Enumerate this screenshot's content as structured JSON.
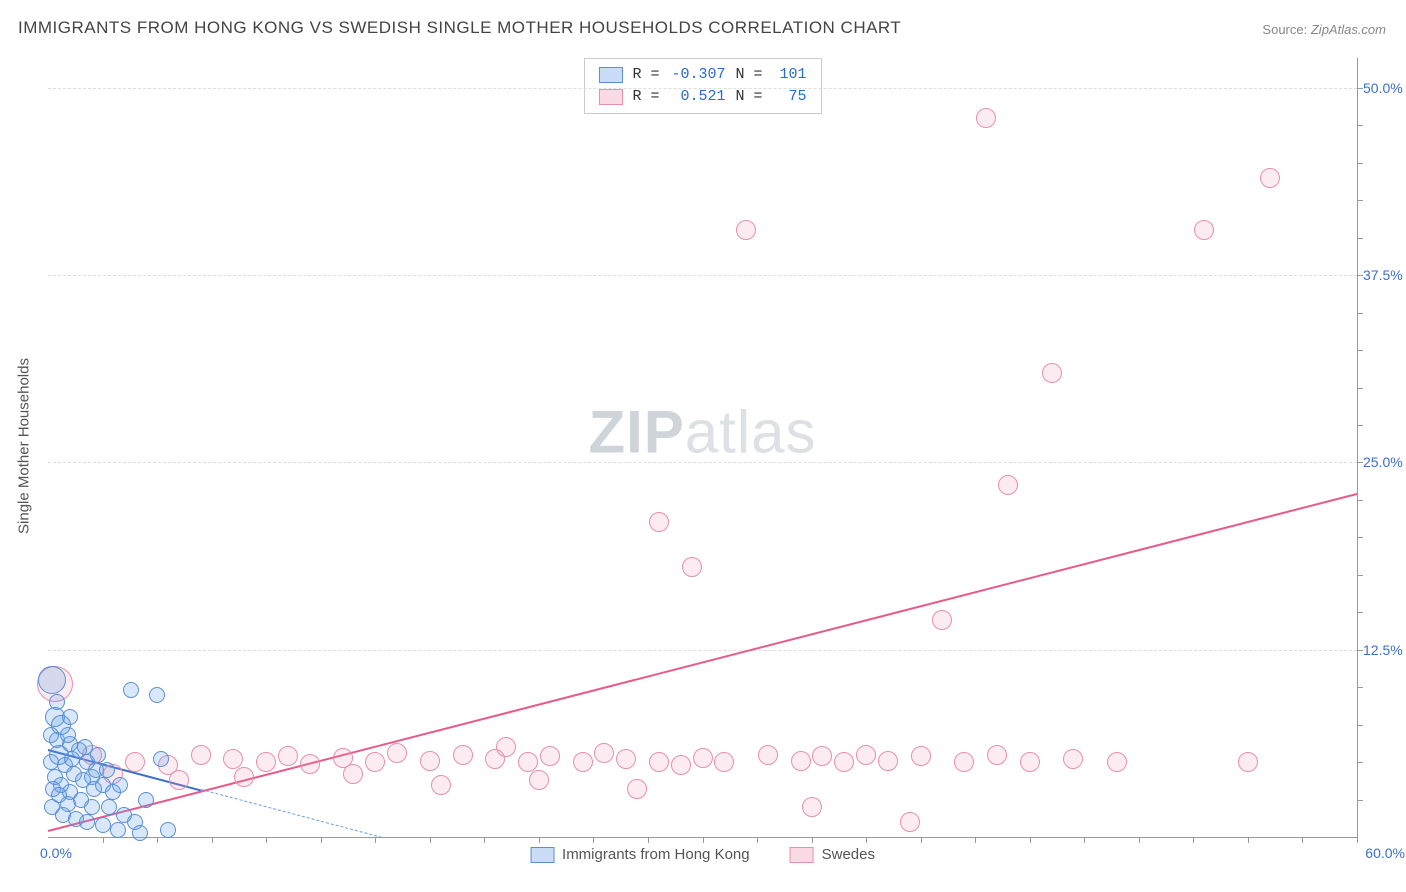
{
  "title": "IMMIGRANTS FROM HONG KONG VS SWEDISH SINGLE MOTHER HOUSEHOLDS CORRELATION CHART",
  "source_label": "Source:",
  "source_value": "ZipAtlas.com",
  "y_axis_title": "Single Mother Households",
  "watermark_zip": "ZIP",
  "watermark_atlas": "atlas",
  "chart": {
    "type": "scatter",
    "xlim": [
      0,
      60
    ],
    "ylim": [
      0,
      52
    ],
    "x_min_label": "0.0%",
    "x_max_label": "60.0%",
    "y_ticks": [
      {
        "v": 12.5,
        "label": "12.5%"
      },
      {
        "v": 25.0,
        "label": "25.0%"
      },
      {
        "v": 37.5,
        "label": "37.5%"
      },
      {
        "v": 50.0,
        "label": "50.0%"
      }
    ],
    "x_tick_step": 2.5,
    "y_tick_step": 2.5,
    "background_color": "#ffffff",
    "grid_color": "#dddddd",
    "marker_radius_default": 8,
    "series": {
      "blue": {
        "label": "Immigrants from Hong Kong",
        "color_fill": "rgba(100,160,230,0.25)",
        "color_stroke": "#5a8fd6",
        "R": "-0.307",
        "N": "101",
        "trend": {
          "x1": 0,
          "y1": 5.9,
          "x2": 7,
          "y2": 3.2,
          "color": "#3b6fc9"
        },
        "trend_dash": {
          "x1": 7,
          "y1": 3.2,
          "x2": 15.3,
          "y2": 0
        },
        "points": [
          {
            "x": 0.2,
            "y": 10.5,
            "r": 14
          },
          {
            "x": 0.3,
            "y": 8,
            "r": 10
          },
          {
            "x": 0.6,
            "y": 7.5,
            "r": 10
          },
          {
            "x": 1.0,
            "y": 6.2,
            "r": 8
          },
          {
            "x": 1.4,
            "y": 5.8,
            "r": 8
          },
          {
            "x": 1.8,
            "y": 5.0,
            "r": 8
          },
          {
            "x": 0.5,
            "y": 5.5,
            "r": 10
          },
          {
            "x": 2.0,
            "y": 4.0,
            "r": 8
          },
          {
            "x": 2.2,
            "y": 4.5,
            "r": 8
          },
          {
            "x": 0.8,
            "y": 4.8,
            "r": 8
          },
          {
            "x": 1.2,
            "y": 4.2,
            "r": 8
          },
          {
            "x": 1.6,
            "y": 3.8,
            "r": 8
          },
          {
            "x": 2.5,
            "y": 3.5,
            "r": 8
          },
          {
            "x": 0.4,
            "y": 6.5,
            "r": 8
          },
          {
            "x": 3.0,
            "y": 3.0,
            "r": 8
          },
          {
            "x": 3.3,
            "y": 3.5,
            "r": 8
          },
          {
            "x": 1.0,
            "y": 3.0,
            "r": 8
          },
          {
            "x": 1.5,
            "y": 2.5,
            "r": 8
          },
          {
            "x": 2.0,
            "y": 2.0,
            "r": 8
          },
          {
            "x": 2.8,
            "y": 2.0,
            "r": 8
          },
          {
            "x": 3.5,
            "y": 1.5,
            "r": 8
          },
          {
            "x": 4.0,
            "y": 1.0,
            "r": 8
          },
          {
            "x": 0.6,
            "y": 3.5,
            "r": 8
          },
          {
            "x": 0.3,
            "y": 4.0,
            "r": 8
          },
          {
            "x": 5.0,
            "y": 9.5,
            "r": 8
          },
          {
            "x": 3.8,
            "y": 9.8,
            "r": 8
          },
          {
            "x": 0.9,
            "y": 6.8,
            "r": 8
          },
          {
            "x": 1.1,
            "y": 5.2,
            "r": 8
          },
          {
            "x": 5.2,
            "y": 5.2,
            "r": 8
          },
          {
            "x": 4.5,
            "y": 2.5,
            "r": 8
          },
          {
            "x": 1.7,
            "y": 6.0,
            "r": 8
          },
          {
            "x": 2.3,
            "y": 5.5,
            "r": 8
          },
          {
            "x": 0.2,
            "y": 2.0,
            "r": 8
          },
          {
            "x": 0.7,
            "y": 1.5,
            "r": 8
          },
          {
            "x": 1.3,
            "y": 1.2,
            "r": 8
          },
          {
            "x": 2.5,
            "y": 0.8,
            "r": 8
          },
          {
            "x": 3.2,
            "y": 0.5,
            "r": 8
          },
          {
            "x": 4.2,
            "y": 0.3,
            "r": 8
          },
          {
            "x": 5.5,
            "y": 0.5,
            "r": 8
          },
          {
            "x": 0.4,
            "y": 9.0,
            "r": 8
          },
          {
            "x": 1.0,
            "y": 8.0,
            "r": 8
          },
          {
            "x": 0.15,
            "y": 5.0,
            "r": 8
          },
          {
            "x": 0.5,
            "y": 2.8,
            "r": 8
          },
          {
            "x": 0.25,
            "y": 3.2,
            "r": 8
          },
          {
            "x": 0.9,
            "y": 2.2,
            "r": 8
          },
          {
            "x": 1.8,
            "y": 1.0,
            "r": 8
          },
          {
            "x": 2.1,
            "y": 3.2,
            "r": 8
          },
          {
            "x": 2.7,
            "y": 4.5,
            "r": 8
          },
          {
            "x": 0.15,
            "y": 6.8,
            "r": 8
          }
        ]
      },
      "pink": {
        "label": "Swedes",
        "color_fill": "rgba(240,150,180,0.18)",
        "color_stroke": "#e78fb0",
        "R": "0.521",
        "N": "75",
        "trend": {
          "x1": 0,
          "y1": 0.5,
          "x2": 60,
          "y2": 23.0,
          "color": "#e85a8a"
        },
        "points": [
          {
            "x": 0.3,
            "y": 10.2,
            "r": 18
          },
          {
            "x": 2,
            "y": 5.5,
            "r": 10
          },
          {
            "x": 4,
            "y": 5.0,
            "r": 10
          },
          {
            "x": 5.5,
            "y": 4.8,
            "r": 10
          },
          {
            "x": 7,
            "y": 5.5,
            "r": 10
          },
          {
            "x": 8.5,
            "y": 5.2,
            "r": 10
          },
          {
            "x": 10,
            "y": 5.0,
            "r": 10
          },
          {
            "x": 11,
            "y": 5.4,
            "r": 10
          },
          {
            "x": 12,
            "y": 4.9,
            "r": 10
          },
          {
            "x": 13.5,
            "y": 5.3,
            "r": 10
          },
          {
            "x": 15,
            "y": 5.0,
            "r": 10
          },
          {
            "x": 16,
            "y": 5.6,
            "r": 10
          },
          {
            "x": 17.5,
            "y": 5.1,
            "r": 10
          },
          {
            "x": 19,
            "y": 5.5,
            "r": 10
          },
          {
            "x": 20.5,
            "y": 5.2,
            "r": 10
          },
          {
            "x": 21,
            "y": 6.0,
            "r": 10
          },
          {
            "x": 22,
            "y": 5.0,
            "r": 10
          },
          {
            "x": 23,
            "y": 5.4,
            "r": 10
          },
          {
            "x": 24.5,
            "y": 5.0,
            "r": 10
          },
          {
            "x": 25.5,
            "y": 5.6,
            "r": 10
          },
          {
            "x": 26.5,
            "y": 5.2,
            "r": 10
          },
          {
            "x": 28,
            "y": 5.0,
            "r": 10
          },
          {
            "x": 28,
            "y": 21.0,
            "r": 10
          },
          {
            "x": 29,
            "y": 4.8,
            "r": 10
          },
          {
            "x": 29.5,
            "y": 18.0,
            "r": 10
          },
          {
            "x": 30,
            "y": 5.3,
            "r": 10
          },
          {
            "x": 31,
            "y": 5.0,
            "r": 10
          },
          {
            "x": 32,
            "y": 40.5,
            "r": 10
          },
          {
            "x": 33,
            "y": 5.5,
            "r": 10
          },
          {
            "x": 34.5,
            "y": 5.1,
            "r": 10
          },
          {
            "x": 35,
            "y": 2.0,
            "r": 10
          },
          {
            "x": 35.5,
            "y": 5.4,
            "r": 10
          },
          {
            "x": 36.5,
            "y": 5.0,
            "r": 10
          },
          {
            "x": 37.5,
            "y": 5.5,
            "r": 10
          },
          {
            "x": 38.5,
            "y": 5.1,
            "r": 10
          },
          {
            "x": 39.5,
            "y": 1.0,
            "r": 10
          },
          {
            "x": 40,
            "y": 5.4,
            "r": 10
          },
          {
            "x": 41,
            "y": 14.5,
            "r": 10
          },
          {
            "x": 42,
            "y": 5.0,
            "r": 10
          },
          {
            "x": 43,
            "y": 48.0,
            "r": 10
          },
          {
            "x": 43.5,
            "y": 5.5,
            "r": 10
          },
          {
            "x": 44,
            "y": 23.5,
            "r": 10
          },
          {
            "x": 45,
            "y": 5.0,
            "r": 10
          },
          {
            "x": 46,
            "y": 31.0,
            "r": 10
          },
          {
            "x": 47,
            "y": 5.2,
            "r": 10
          },
          {
            "x": 49,
            "y": 5.0,
            "r": 10
          },
          {
            "x": 53,
            "y": 40.5,
            "r": 10
          },
          {
            "x": 55,
            "y": 5.0,
            "r": 10
          },
          {
            "x": 56,
            "y": 44.0,
            "r": 10
          },
          {
            "x": 3,
            "y": 4.2,
            "r": 10
          },
          {
            "x": 6,
            "y": 3.8,
            "r": 10
          },
          {
            "x": 9,
            "y": 4.0,
            "r": 10
          },
          {
            "x": 14,
            "y": 4.2,
            "r": 10
          },
          {
            "x": 18,
            "y": 3.5,
            "r": 10
          },
          {
            "x": 22.5,
            "y": 3.8,
            "r": 10
          },
          {
            "x": 27,
            "y": 3.2,
            "r": 10
          }
        ]
      }
    }
  },
  "stats_legend": {
    "R_label": "R =",
    "N_label": "N ="
  }
}
